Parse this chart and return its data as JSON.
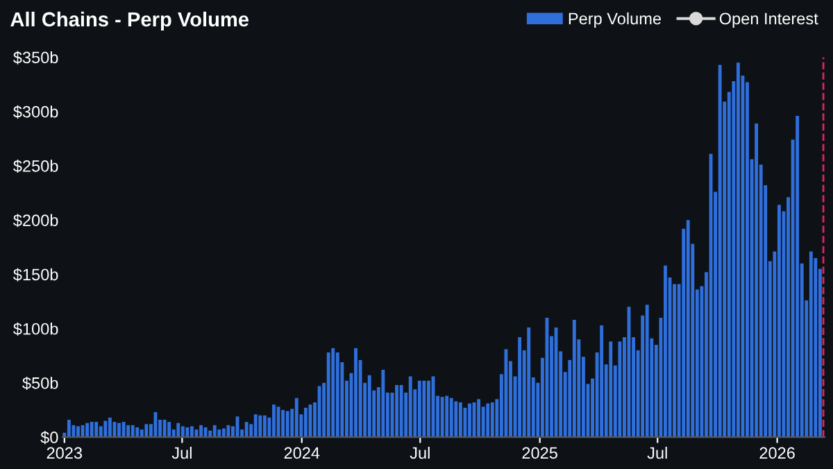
{
  "chart_data": {
    "type": "bar",
    "title": "All Chains - Perp Volume",
    "x": [
      "2023-01-01",
      "2023-01-08",
      "2023-01-15",
      "2023-01-22",
      "2023-01-29",
      "2023-02-05",
      "2023-02-12",
      "2023-02-19",
      "2023-02-26",
      "2023-03-05",
      "2023-03-12",
      "2023-03-19",
      "2023-03-26",
      "2023-04-02",
      "2023-04-09",
      "2023-04-16",
      "2023-04-23",
      "2023-04-30",
      "2023-05-07",
      "2023-05-14",
      "2023-05-21",
      "2023-05-28",
      "2023-06-04",
      "2023-06-11",
      "2023-06-18",
      "2023-06-25",
      "2023-07-02",
      "2023-07-09",
      "2023-07-16",
      "2023-07-23",
      "2023-07-30",
      "2023-08-06",
      "2023-08-13",
      "2023-08-20",
      "2023-08-27",
      "2023-09-03",
      "2023-09-10",
      "2023-09-17",
      "2023-09-24",
      "2023-10-01",
      "2023-10-08",
      "2023-10-15",
      "2023-10-22",
      "2023-10-29",
      "2023-11-05",
      "2023-11-12",
      "2023-11-19",
      "2023-11-26",
      "2023-12-03",
      "2023-12-10",
      "2023-12-17",
      "2023-12-24",
      "2023-12-31",
      "2024-01-07",
      "2024-01-14",
      "2024-01-21",
      "2024-01-28",
      "2024-02-04",
      "2024-02-11",
      "2024-02-18",
      "2024-02-25",
      "2024-03-03",
      "2024-03-10",
      "2024-03-17",
      "2024-03-24",
      "2024-03-31",
      "2024-04-07",
      "2024-04-14",
      "2024-04-21",
      "2024-04-28",
      "2024-05-05",
      "2024-05-12",
      "2024-05-19",
      "2024-05-26",
      "2024-06-02",
      "2024-06-09",
      "2024-06-16",
      "2024-06-23",
      "2024-06-30",
      "2024-07-07",
      "2024-07-14",
      "2024-07-21",
      "2024-07-28",
      "2024-08-04",
      "2024-08-11",
      "2024-08-18",
      "2024-08-25",
      "2024-09-01",
      "2024-09-08",
      "2024-09-15",
      "2024-09-22",
      "2024-09-29",
      "2024-10-06",
      "2024-10-13",
      "2024-10-20",
      "2024-10-27",
      "2024-11-03",
      "2024-11-10",
      "2024-11-17",
      "2024-11-24",
      "2024-12-01",
      "2024-12-08",
      "2024-12-15",
      "2024-12-22",
      "2024-12-29",
      "2025-01-05",
      "2025-01-12",
      "2025-01-19",
      "2025-01-26",
      "2025-02-02",
      "2025-02-09",
      "2025-02-16",
      "2025-02-23",
      "2025-03-02",
      "2025-03-09",
      "2025-03-16",
      "2025-03-23",
      "2025-03-30",
      "2025-04-06",
      "2025-04-13",
      "2025-04-20",
      "2025-04-27",
      "2025-05-04",
      "2025-05-11",
      "2025-05-18",
      "2025-05-25",
      "2025-06-01",
      "2025-06-08",
      "2025-06-15",
      "2025-06-22",
      "2025-06-29",
      "2025-07-06",
      "2025-07-13",
      "2025-07-20",
      "2025-07-27",
      "2025-08-03",
      "2025-08-10",
      "2025-08-17",
      "2025-08-24",
      "2025-08-31",
      "2025-09-07",
      "2025-09-14",
      "2025-09-21",
      "2025-09-28",
      "2025-10-05",
      "2025-10-12",
      "2025-10-19",
      "2025-10-26",
      "2025-11-02",
      "2025-11-09",
      "2025-11-16",
      "2025-11-23",
      "2025-11-30",
      "2025-12-07",
      "2025-12-14",
      "2025-12-21",
      "2025-12-28",
      "2026-01-04",
      "2026-01-11",
      "2026-01-18",
      "2026-01-25",
      "2026-02-01",
      "2026-02-08",
      "2026-02-15",
      "2026-02-22",
      "2026-03-01",
      "2026-03-08"
    ],
    "series": [
      {
        "name": "Perp Volume",
        "color": "#2f6fdc",
        "values": [
          4,
          16,
          11,
          10,
          11,
          13,
          14,
          14,
          10,
          15,
          18,
          14,
          13,
          14,
          11,
          11,
          9,
          7,
          12,
          12,
          23,
          16,
          16,
          14,
          7,
          13,
          10,
          9,
          10,
          7,
          11,
          9,
          6,
          11,
          7,
          8,
          11,
          10,
          19,
          7,
          14,
          12,
          21,
          20,
          20,
          18,
          30,
          28,
          25,
          24,
          26,
          36,
          21,
          27,
          30,
          32,
          47,
          50,
          78,
          82,
          78,
          69,
          52,
          59,
          82,
          71,
          50,
          57,
          43,
          46,
          62,
          41,
          41,
          48,
          48,
          41,
          56,
          44,
          52,
          52,
          52,
          56,
          38,
          37,
          38,
          36,
          33,
          32,
          27,
          31,
          32,
          35,
          28,
          31,
          32,
          35,
          58,
          81,
          70,
          56,
          92,
          80,
          101,
          55,
          50,
          73,
          110,
          93,
          101,
          79,
          60,
          71,
          108,
          90,
          74,
          49,
          54,
          78,
          103,
          67,
          88,
          66,
          88,
          92,
          120,
          92,
          80,
          112,
          122,
          91,
          85,
          110,
          158,
          147,
          141,
          141,
          192,
          200,
          178,
          136,
          139,
          152,
          261,
          226,
          343,
          309,
          318,
          328,
          345,
          333,
          327,
          256,
          289,
          251,
          232,
          162,
          171,
          214,
          208,
          221,
          274,
          296,
          160,
          126,
          171,
          165,
          155
        ]
      },
      {
        "name": "Open Interest",
        "type": "line",
        "marker": "circle",
        "color": "#d9d9d9",
        "values": [
          null,
          null,
          null,
          null,
          null,
          null,
          null,
          null,
          null,
          null,
          null,
          null,
          null,
          null,
          null,
          null,
          null,
          null,
          null,
          null,
          null,
          null,
          null,
          null,
          null,
          null,
          null,
          null,
          null,
          null,
          null,
          null,
          null,
          null,
          null,
          null,
          null,
          null,
          null,
          null,
          null,
          null,
          null,
          null,
          null,
          null,
          null,
          null,
          null,
          null,
          null,
          null,
          null,
          null,
          null,
          null,
          null,
          null,
          null,
          null,
          null,
          null,
          null,
          null,
          null,
          null,
          null,
          null,
          null,
          null,
          null,
          null,
          null,
          null,
          null,
          null,
          null,
          null,
          null,
          null,
          null,
          null,
          null,
          null,
          null,
          null,
          null,
          null,
          null,
          null,
          null,
          null,
          null,
          null,
          null,
          null,
          null,
          null,
          null,
          null,
          null,
          null,
          null,
          null,
          null,
          null,
          null,
          null,
          null,
          null,
          null,
          null,
          null,
          null,
          null,
          null,
          null,
          null,
          null,
          null,
          null,
          null,
          null,
          null,
          null,
          null,
          null,
          null,
          null,
          null,
          null,
          null,
          null,
          null,
          null,
          null,
          null,
          null,
          null,
          null,
          null,
          null,
          null,
          null,
          null,
          null,
          null,
          null,
          null,
          null,
          null,
          null,
          null,
          null,
          null,
          null,
          null,
          null,
          null,
          null,
          null,
          null,
          null,
          null,
          null,
          null,
          null
        ]
      }
    ],
    "xlim": [
      "2022-12-29",
      "2026-03-15"
    ],
    "xticks": [
      {
        "value": "2023-01-01",
        "label": "2023"
      },
      {
        "value": "2023-07-01",
        "label": "Jul"
      },
      {
        "value": "2024-01-01",
        "label": "2024"
      },
      {
        "value": "2024-07-01",
        "label": "Jul"
      },
      {
        "value": "2025-01-01",
        "label": "2025"
      },
      {
        "value": "2025-07-01",
        "label": "Jul"
      },
      {
        "value": "2026-01-01",
        "label": "2026"
      }
    ],
    "ylim": [
      0,
      350
    ],
    "yticks": [
      {
        "value": 0,
        "label": "$0"
      },
      {
        "value": 50,
        "label": "$50b"
      },
      {
        "value": 100,
        "label": "$100b"
      },
      {
        "value": 150,
        "label": "$150b"
      },
      {
        "value": 200,
        "label": "$200b"
      },
      {
        "value": 250,
        "label": "$250b"
      },
      {
        "value": 300,
        "label": "$300b"
      },
      {
        "value": 350,
        "label": "$350b"
      }
    ],
    "ref_lines": [
      {
        "axis": "x",
        "value": "2026-03-13",
        "color": "#e0245e",
        "line_style": "dashed"
      }
    ],
    "grid": false,
    "legend": "top right"
  }
}
